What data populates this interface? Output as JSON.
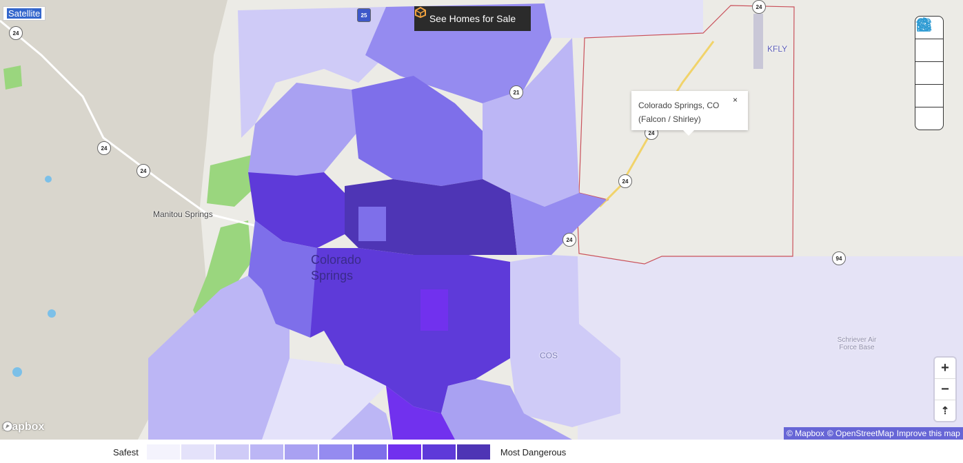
{
  "map": {
    "satellite_label": "Satellite",
    "see_homes_label": "See Homes for Sale",
    "popup": {
      "line1": "Colorado Springs, CO",
      "line2": "(Falcon / Shirley)",
      "close": "×"
    },
    "place_labels": {
      "manitou": "Manitou Springs",
      "city": "Colorado Springs",
      "kfly": "KFLY",
      "cos": "COS",
      "schriever": "Schriever Air Force Base"
    },
    "shields": {
      "us24_a": "24",
      "us24_b": "24",
      "us24_c": "24",
      "us24_d": "24",
      "us24_e": "24",
      "us24_f": "24",
      "i25": "25",
      "r21": "21",
      "r94": "94",
      "top24": "24"
    },
    "tool_icons": [
      "home-icon",
      "people-icon",
      "location-route-icon",
      "school-icon",
      "layers-icon"
    ],
    "zoom_in": "+",
    "zoom_out": "−",
    "compass": "⇡",
    "mapbox_logo": "mapbox",
    "attribution": {
      "mapbox": "© Mapbox",
      "osm": "© OpenStreetMap",
      "improve": "Improve this map"
    }
  },
  "legend": {
    "safest": "Safest",
    "most_dangerous": "Most Dangerous",
    "colors": [
      "#f4f3fd",
      "#e4e2fa",
      "#cfcbf7",
      "#bcb6f5",
      "#a9a1f2",
      "#958bf0",
      "#7e6fea",
      "#7131ee",
      "#5e3ad9",
      "#4e35b5"
    ]
  }
}
